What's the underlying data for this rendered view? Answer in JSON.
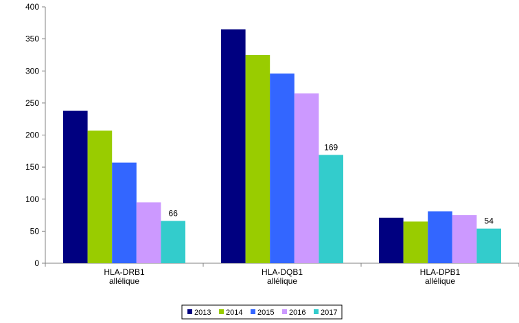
{
  "chart_data": {
    "type": "bar",
    "categories": [
      [
        "HLA-DRB1",
        "allélique"
      ],
      [
        "HLA-DQB1",
        "allélique"
      ],
      [
        "HLA-DPB1",
        "allélique"
      ]
    ],
    "series": [
      {
        "name": "2013",
        "color": "#000080",
        "values": [
          238,
          365,
          71
        ]
      },
      {
        "name": "2014",
        "color": "#99cc00",
        "values": [
          207,
          325,
          65
        ]
      },
      {
        "name": "2015",
        "color": "#3366ff",
        "values": [
          157,
          296,
          81
        ]
      },
      {
        "name": "2016",
        "color": "#cc99ff",
        "values": [
          95,
          265,
          75
        ]
      },
      {
        "name": "2017",
        "color": "#33cccc",
        "values": [
          66,
          169,
          54
        ]
      }
    ],
    "data_labels": {
      "series": "2017",
      "values": [
        "66",
        "169",
        "54"
      ]
    },
    "ylim": [
      0,
      400
    ],
    "yticks": [
      0,
      50,
      100,
      150,
      200,
      250,
      300,
      350,
      400
    ],
    "title": "",
    "xlabel": "",
    "ylabel": "",
    "grid": false,
    "legend": "bottom"
  }
}
